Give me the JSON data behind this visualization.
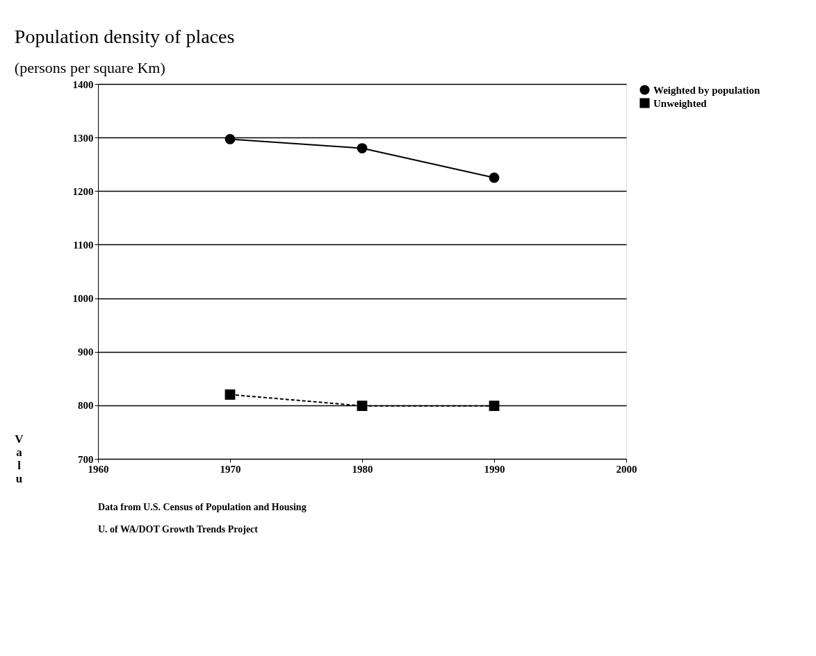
{
  "chart_data": {
    "type": "line",
    "title": "Population density of places",
    "subtitle": "(persons per square Km)",
    "ylabel": "Valu",
    "x": [
      1970,
      1980,
      1990
    ],
    "series": [
      {
        "name": "Weighted by population",
        "color": "#000000",
        "values": [
          1297,
          1280,
          1225
        ],
        "marker": "circle",
        "line_style": "solid"
      },
      {
        "name": "Unweighted",
        "color": "#000000",
        "values": [
          820,
          799,
          799
        ],
        "marker": "square",
        "line_style": "dashed"
      }
    ],
    "xlim": [
      1960,
      2000
    ],
    "xticks": [
      1960,
      1970,
      1980,
      1990,
      2000
    ],
    "ylim": [
      700,
      1400
    ],
    "yticks": [
      700,
      800,
      900,
      1000,
      1100,
      1200,
      1300,
      1400
    ],
    "grid": "y",
    "legend": "right",
    "annotations": [
      "Data from U.S. Census of Population and Housing",
      "U. of WA/DOT Growth Trends Project"
    ]
  }
}
